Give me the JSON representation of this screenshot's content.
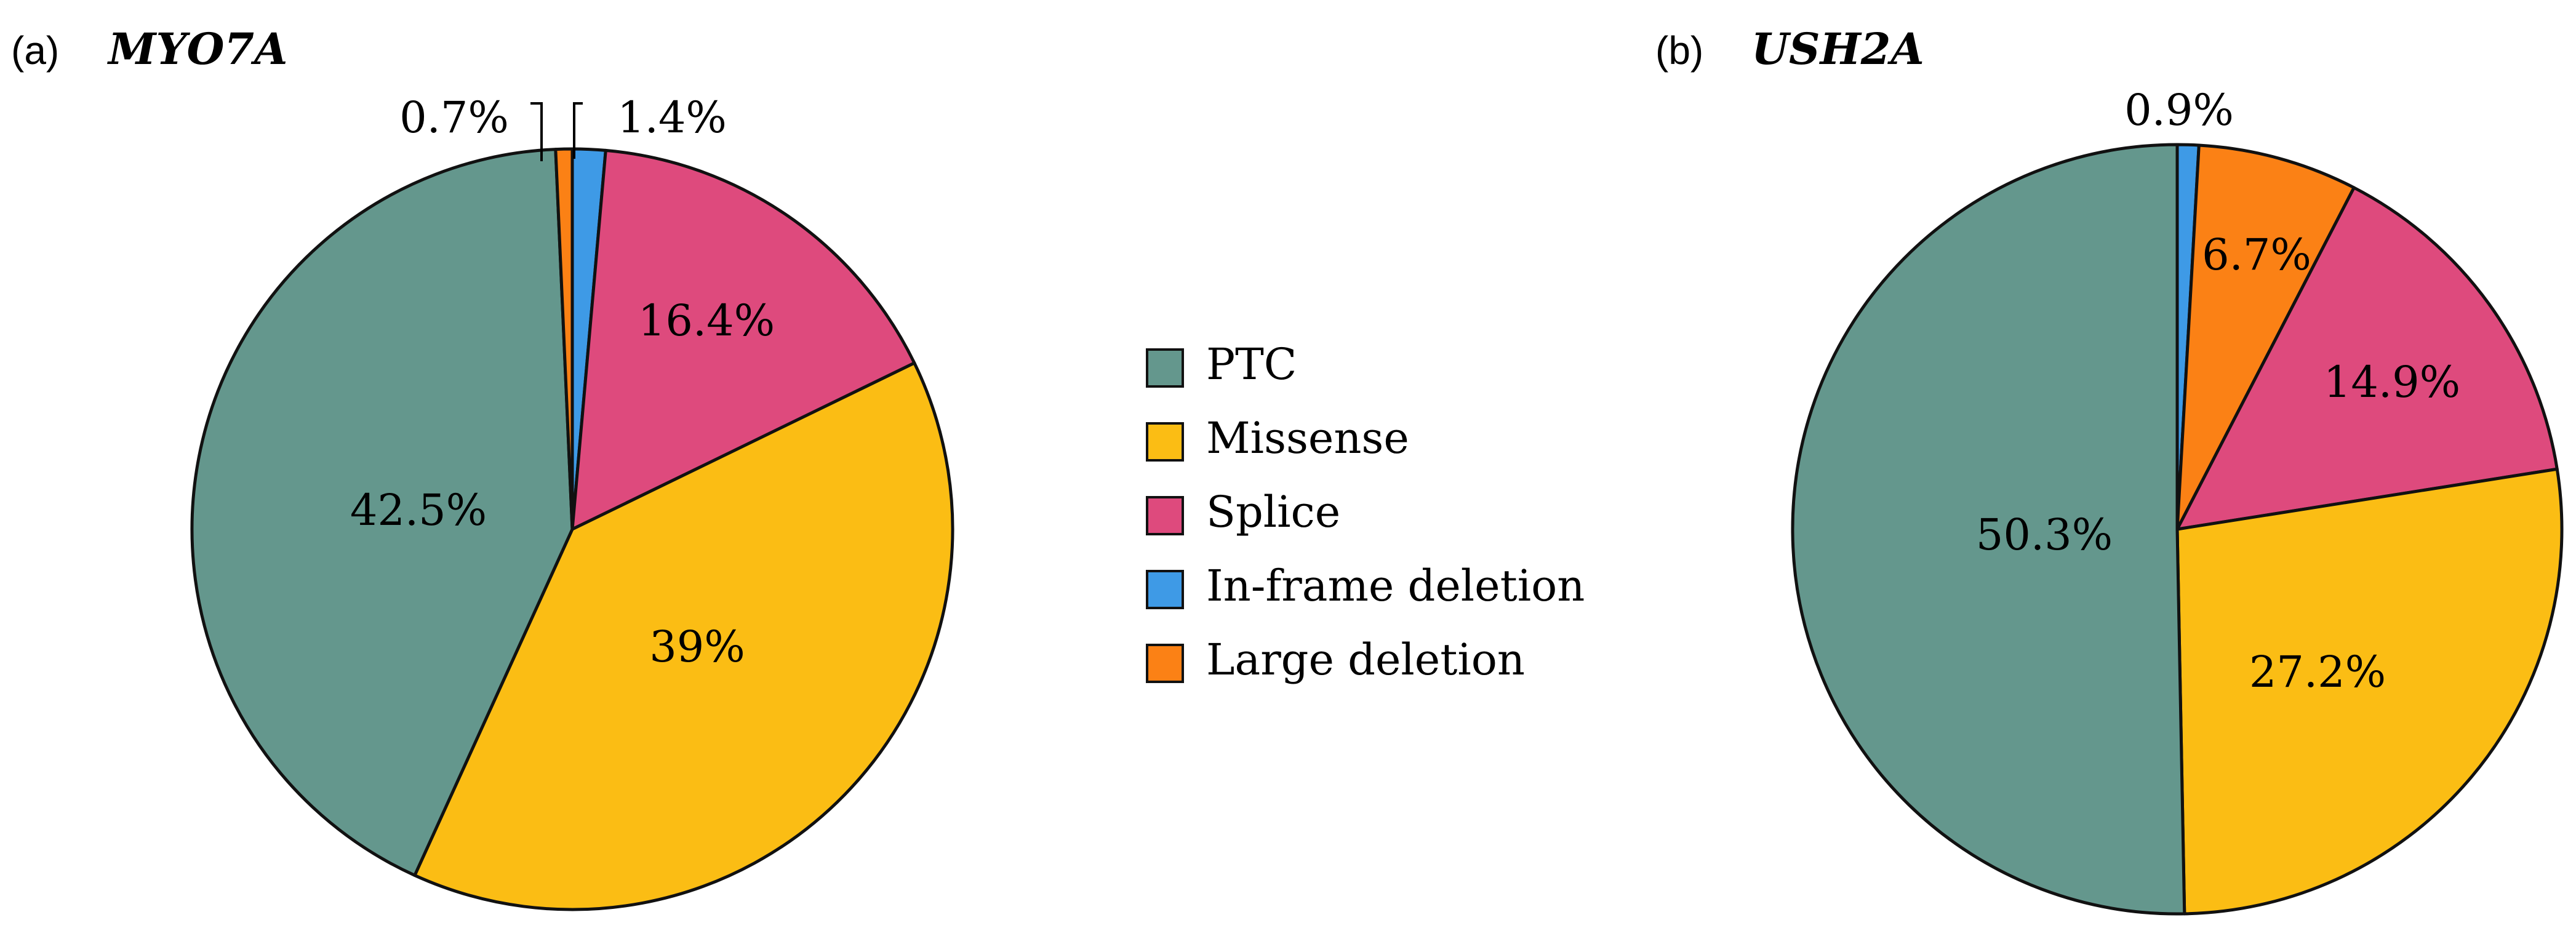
{
  "chart_data": [
    {
      "type": "pie",
      "panel": "(a)",
      "title": "MYO7A",
      "slices": [
        {
          "label": "In-frame deletion",
          "value": 1.4,
          "text": "1.4%",
          "color": "#3E9AE6"
        },
        {
          "label": "Splice",
          "value": 16.4,
          "text": "16.4%",
          "color": "#DE4A7D"
        },
        {
          "label": "Missense",
          "value": 39,
          "text": "39%",
          "color": "#FBBD14"
        },
        {
          "label": "PTC",
          "value": 42.5,
          "text": "42.5%",
          "color": "#64978D"
        },
        {
          "label": "Large deletion",
          "value": 0.7,
          "text": "0.7%",
          "color": "#FB8115"
        }
      ]
    },
    {
      "type": "pie",
      "panel": "(b)",
      "title": "USH2A",
      "slices": [
        {
          "label": "In-frame deletion",
          "value": 0.9,
          "text": "0.9%",
          "color": "#3E9AE6"
        },
        {
          "label": "Large deletion",
          "value": 6.7,
          "text": "6.7%",
          "color": "#FB8115"
        },
        {
          "label": "Splice",
          "value": 14.9,
          "text": "14.9%",
          "color": "#DE4A7D"
        },
        {
          "label": "Missense",
          "value": 27.2,
          "text": "27.2%",
          "color": "#FBBD14"
        },
        {
          "label": "PTC",
          "value": 50.3,
          "text": "50.3%",
          "color": "#64978D"
        }
      ]
    }
  ],
  "legend": {
    "items": [
      {
        "label": "PTC",
        "color": "#64978D"
      },
      {
        "label": "Missense",
        "color": "#FBBD14"
      },
      {
        "label": "Splice",
        "color": "#DE4A7D"
      },
      {
        "label": "In-frame deletion",
        "color": "#3E9AE6"
      },
      {
        "label": "Large deletion",
        "color": "#FB8115"
      }
    ]
  }
}
